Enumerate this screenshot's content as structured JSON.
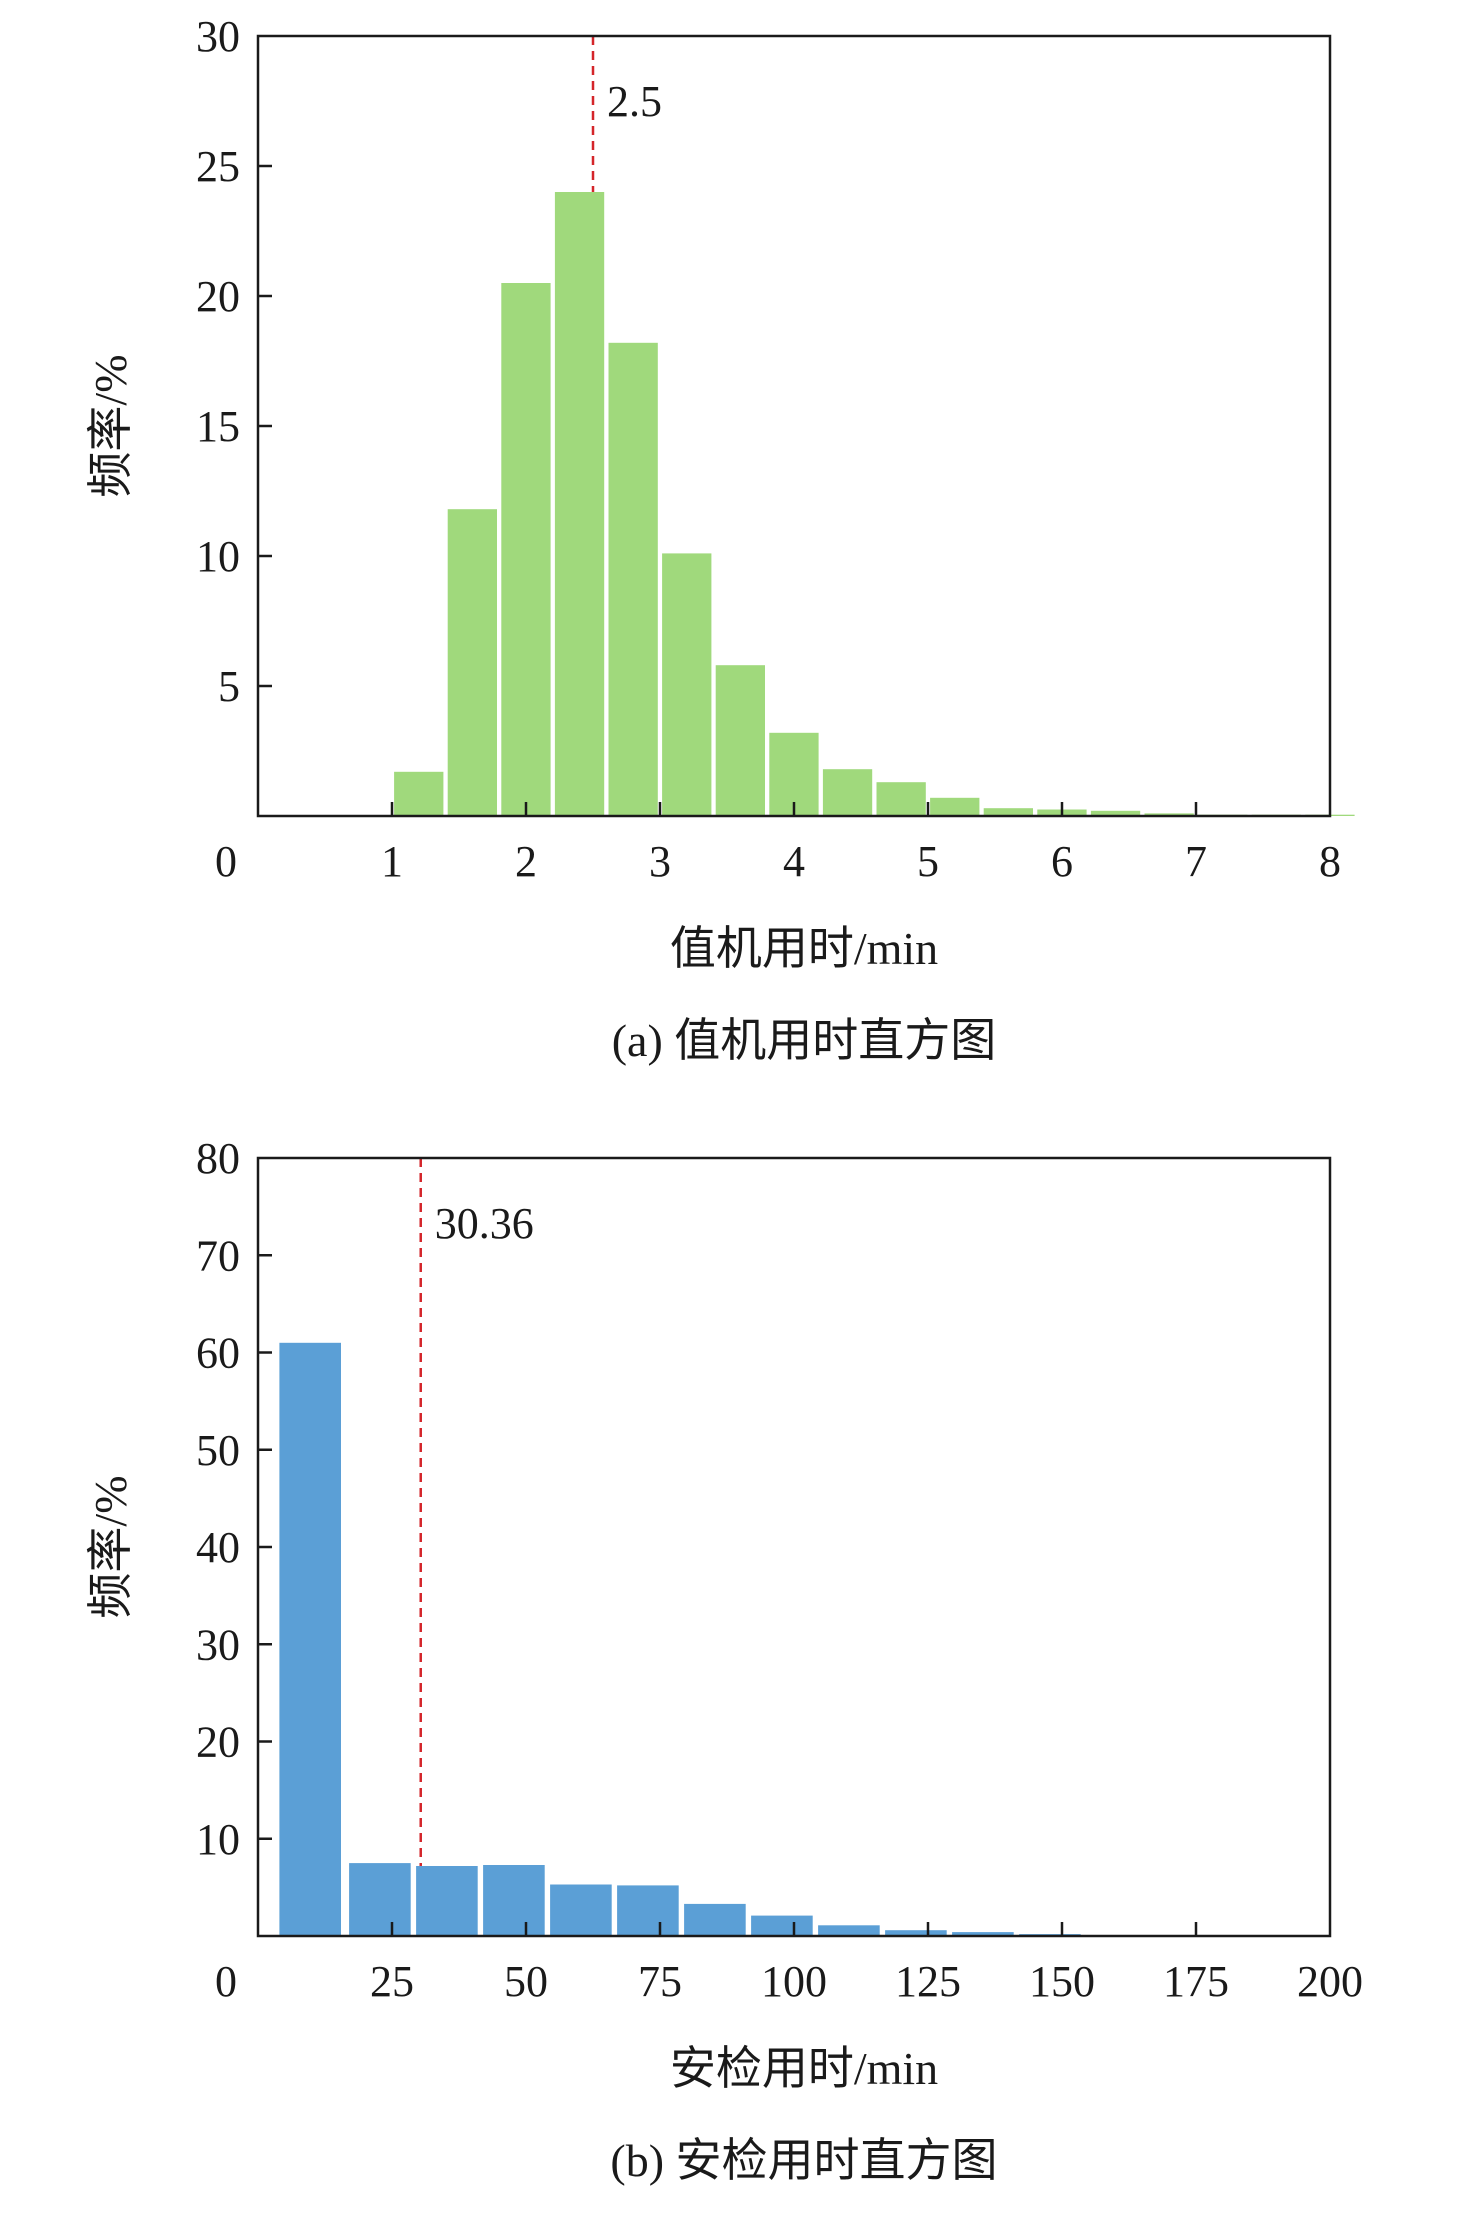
{
  "chart_data": [
    {
      "type": "bar",
      "ylabel": "频率/%",
      "xlabel": "值机用时/min",
      "caption": "(a) 值机用时直方图",
      "xlim": [
        0,
        8
      ],
      "ylim": [
        0,
        30
      ],
      "x_ticks": [
        "0",
        "1",
        "2",
        "3",
        "4",
        "5",
        "6",
        "7",
        "8"
      ],
      "y_ticks": [
        "5",
        "10",
        "15",
        "20",
        "25",
        "30"
      ],
      "bin_width": 0.4,
      "bar_color": "#a0d97c",
      "bins_x": [
        1.0,
        1.4,
        1.8,
        2.2,
        2.6,
        3.0,
        3.4,
        3.8,
        4.2,
        4.6,
        5.0,
        5.4,
        5.8,
        6.2,
        6.6,
        7.0,
        7.4,
        7.8
      ],
      "values": [
        1.7,
        11.8,
        20.5,
        24.0,
        18.2,
        10.1,
        5.8,
        3.2,
        1.8,
        1.3,
        0.7,
        0.3,
        0.25,
        0.2,
        0.1,
        0.05,
        0.05,
        0.05
      ],
      "reference_line": {
        "x": 2.5,
        "label": "2.5",
        "color": "#d4252a"
      }
    },
    {
      "type": "bar",
      "ylabel": "频率/%",
      "xlabel": "安检用时/min",
      "caption": "(b) 安检用时直方图",
      "xlim": [
        0,
        200
      ],
      "ylim": [
        0,
        80
      ],
      "x_ticks": [
        "0",
        "25",
        "50",
        "75",
        "100",
        "125",
        "150",
        "175",
        "200"
      ],
      "y_ticks": [
        "10",
        "20",
        "30",
        "40",
        "50",
        "60",
        "70",
        "80"
      ],
      "bin_width": 12.5,
      "bar_color": "#5b9fd6",
      "bins_x": [
        3.5,
        16.5,
        29,
        41.5,
        54,
        66.5,
        79,
        91.5,
        104,
        116.5,
        129,
        141.5
      ],
      "values": [
        61,
        7.5,
        7.2,
        7.3,
        5.3,
        5.2,
        3.3,
        2.1,
        1.1,
        0.6,
        0.4,
        0.2
      ],
      "reference_line": {
        "x": 30.36,
        "label": "30.36",
        "color": "#d4252a"
      }
    }
  ]
}
